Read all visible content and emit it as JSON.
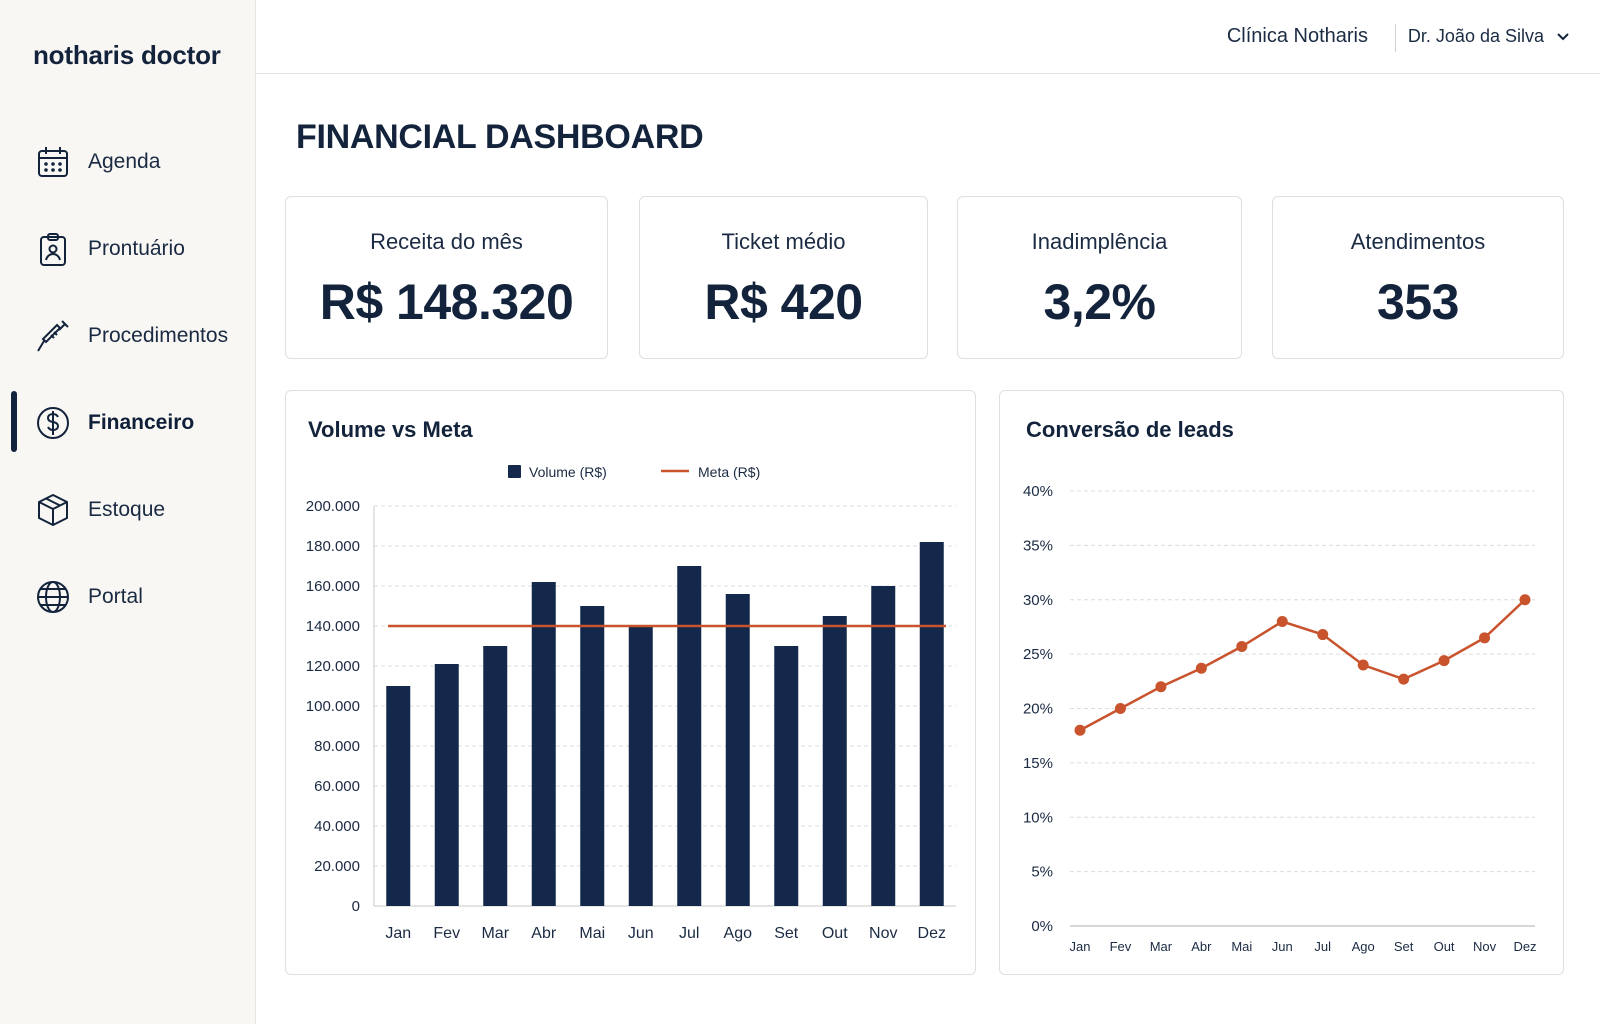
{
  "sidebar": {
    "brand": "notharis doctor",
    "items": [
      {
        "label": "Agenda",
        "icon": "calendar-icon"
      },
      {
        "label": "Prontuário",
        "icon": "patient-record-icon"
      },
      {
        "label": "Procedimentos",
        "icon": "syringe-icon"
      },
      {
        "label": "Financeiro",
        "icon": "dollar-circle-icon",
        "active": true
      },
      {
        "label": "Estoque",
        "icon": "box-icon"
      },
      {
        "label": "Portal",
        "icon": "globe-icon"
      }
    ]
  },
  "header": {
    "clinic": "Clínica Notharis",
    "user": "Dr. João da Silva",
    "user_icon": "chevron-down-icon"
  },
  "page": {
    "title": "FINANCIAL DASHBOARD"
  },
  "kpis": [
    {
      "label": "Receita do mês",
      "value": "R$ 148.320"
    },
    {
      "label": "Ticket médio",
      "value": "R$ 420"
    },
    {
      "label": "Inadimplência",
      "value": "3,2%"
    },
    {
      "label": "Atendimentos",
      "value": "353"
    }
  ],
  "colors": {
    "navy": "#13284a",
    "accent": "#c8532d",
    "grid": "#dcdcdc"
  },
  "chart_data": [
    {
      "type": "bar",
      "title": "Volume vs Meta",
      "categories": [
        "Jan",
        "Fev",
        "Mar",
        "Abr",
        "Mai",
        "Jun",
        "Jul",
        "Ago",
        "Set",
        "Out",
        "Nov",
        "Dez"
      ],
      "series": [
        {
          "name": "Volume (R$)",
          "type": "bar",
          "values": [
            110000,
            121000,
            130000,
            162000,
            150000,
            140000,
            170000,
            156000,
            130000,
            145000,
            160000,
            182000
          ]
        },
        {
          "name": "Meta (R$)",
          "type": "line",
          "values": [
            140000,
            140000,
            140000,
            140000,
            140000,
            140000,
            140000,
            140000,
            140000,
            140000,
            140000,
            140000
          ]
        }
      ],
      "ylim": [
        0,
        200000
      ],
      "yticks": [
        "0",
        "20.000",
        "40.000",
        "60.000",
        "80.000",
        "100.000",
        "120.000",
        "140.000",
        "160.000",
        "180.000",
        "200.000"
      ],
      "grid": true,
      "legend": "top-center"
    },
    {
      "type": "line",
      "title": "Conversão de leads",
      "categories": [
        "Jan",
        "Fev",
        "Mar",
        "Abr",
        "Mai",
        "Jun",
        "Jul",
        "Ago",
        "Set",
        "Out",
        "Nov",
        "Dez"
      ],
      "series": [
        {
          "values": [
            18,
            20,
            22,
            23.7,
            25.7,
            28,
            26.8,
            24,
            22.7,
            24.4,
            26.5,
            30
          ]
        }
      ],
      "ylim": [
        0,
        40
      ],
      "yticks": [
        "0%",
        "5%",
        "10%",
        "15%",
        "20%",
        "25%",
        "30%",
        "35%",
        "40%"
      ],
      "grid": true
    }
  ]
}
